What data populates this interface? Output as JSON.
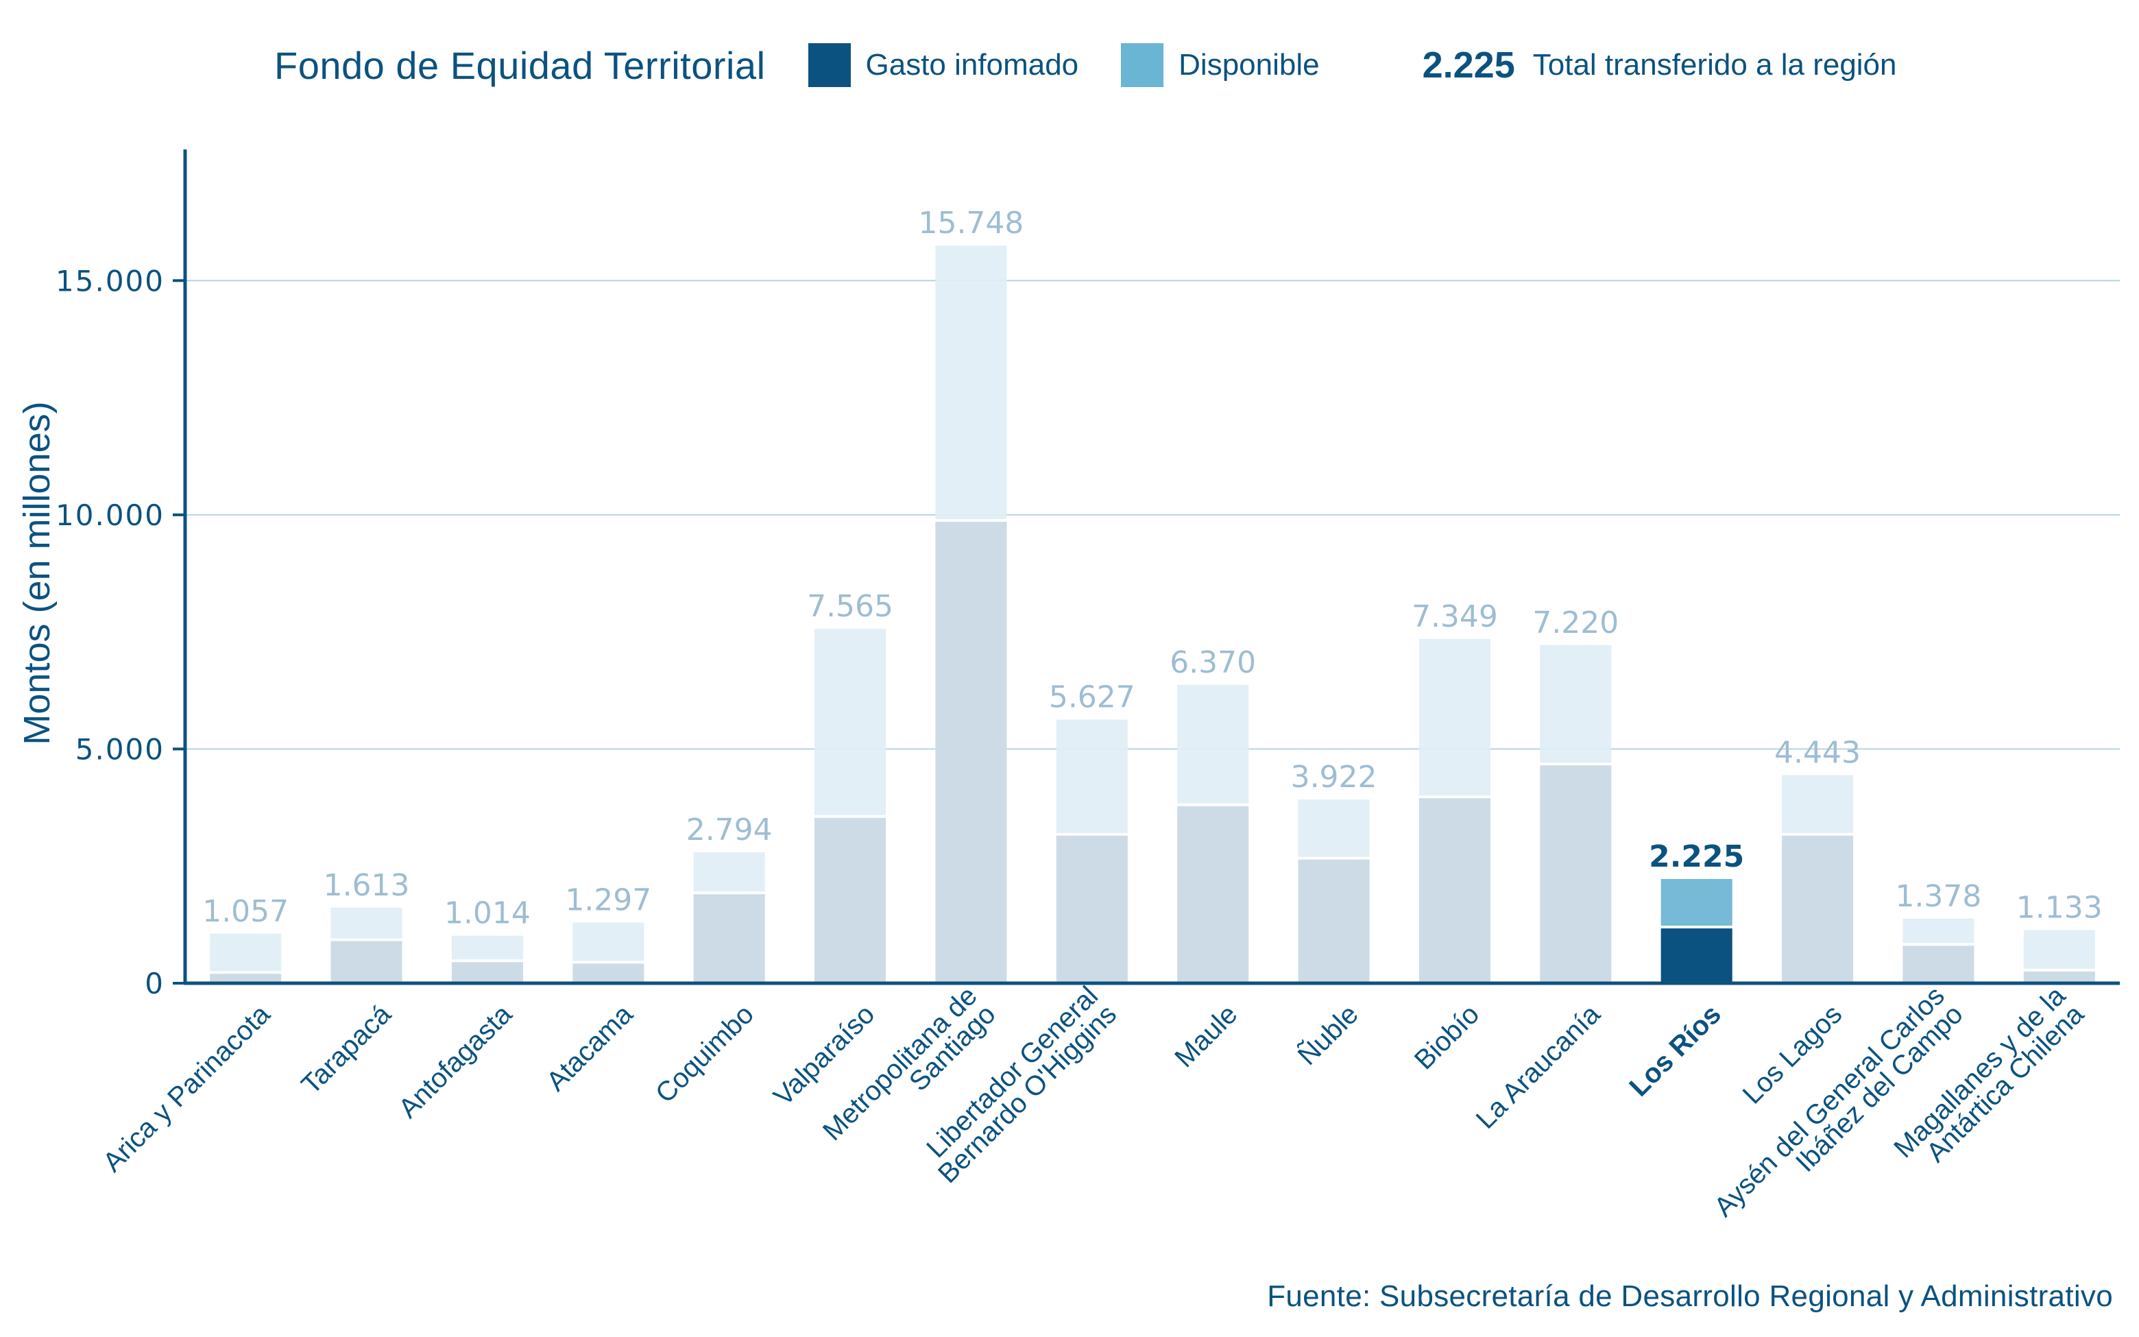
{
  "legend": {
    "title": "Fondo de Equidad Territorial",
    "items": [
      {
        "label": "Gasto infomado",
        "color": "#0b5280"
      },
      {
        "label": "Disponible",
        "color": "#6ab4d4"
      }
    ],
    "total_value": "2.225",
    "total_label": "Total transferido a la región"
  },
  "source": "Fuente: Subsecretaría de Desarrollo Regional y Administrativo",
  "colors": {
    "axis": "#0b5280",
    "grid": "#b8d4e2",
    "muted_spent": "#cddbe6",
    "muted_available": "#e0eef5",
    "muted_label": "#9dbdd2",
    "highlight_spent": "#0b5280",
    "highlight_available": "#6ab4d4",
    "highlight_label": "#0b5280"
  },
  "chart_data": {
    "type": "bar",
    "stacked": true,
    "title": "Fondo de Equidad Territorial",
    "xlabel": "",
    "ylabel": "Montos (en millones)",
    "ylim": [
      0,
      17800
    ],
    "yticks": [
      0,
      5000,
      10000,
      15000
    ],
    "ytick_labels": [
      "0",
      "5.000",
      "10.000",
      "15.000"
    ],
    "grid": true,
    "legend_position": "top",
    "highlight_category": "Los Ríos",
    "categories": [
      "Arica y Parinacota",
      "Tarapacá",
      "Antofagasta",
      "Atacama",
      "Coquimbo",
      "Valparaíso",
      "Metropolitana de\nSantiago",
      "Libertador General\nBernardo O'Higgins",
      "Maule",
      "Ñuble",
      "Biobío",
      "La Araucanía",
      "Los Ríos",
      "Los Lagos",
      "Aysén del General Carlos\nIbáñez del Campo",
      "Magallanes y de la\nAntártica Chilena"
    ],
    "series": [
      {
        "name": "Gasto infomado",
        "values": [
          200,
          900,
          450,
          420,
          1900,
          3530,
          9850,
          3150,
          3780,
          2640,
          3950,
          4650,
          1170,
          3150,
          800,
          250
        ]
      },
      {
        "name": "Disponible",
        "values": [
          857,
          713,
          564,
          877,
          894,
          4035,
          5898,
          2477,
          2590,
          1282,
          3399,
          2570,
          1055,
          1293,
          578,
          883
        ]
      }
    ],
    "totals": [
      1057,
      1613,
      1014,
      1297,
      2794,
      7565,
      15748,
      5627,
      6370,
      3922,
      7349,
      7220,
      2225,
      4443,
      1378,
      1133
    ],
    "total_labels": [
      "1.057",
      "1.613",
      "1.014",
      "1.297",
      "2.794",
      "7.565",
      "15.748",
      "5.627",
      "6.370",
      "3.922",
      "7.349",
      "7.220",
      "2.225",
      "4.443",
      "1.378",
      "1.133"
    ]
  }
}
